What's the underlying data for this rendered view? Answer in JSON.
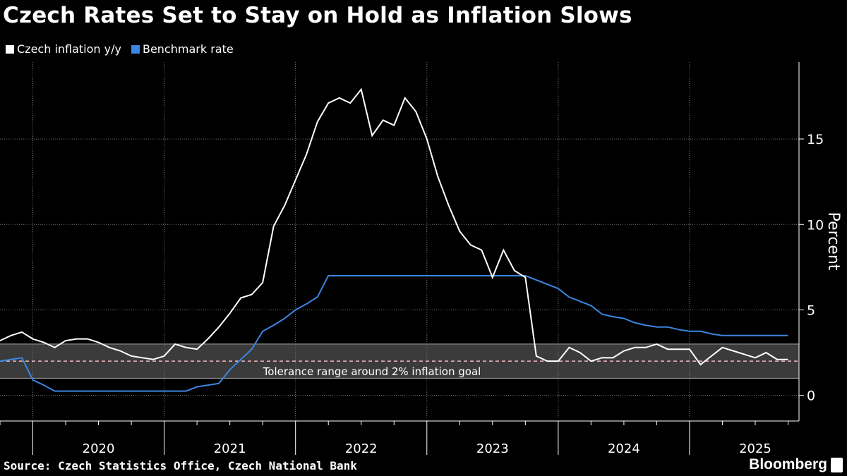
{
  "title": "Czech Rates Set to Stay on Hold as Inflation Slows",
  "source": "Source: Czech Statistics Office, Czech National Bank",
  "brand": "Bloomberg",
  "colors": {
    "inflation": "#ffffff",
    "rate": "#3a86e0",
    "band": "#3b3b3b",
    "goal": "#f3b6be",
    "grid": "#777777"
  },
  "chart_data": {
    "type": "line",
    "ylabel": "Percent",
    "ylim": [
      -1.5,
      19.5
    ],
    "yticks": [
      0,
      5,
      10,
      15
    ],
    "xlim": [
      "2019-10",
      "2025-11"
    ],
    "xtick_labels": [
      "2020",
      "2021",
      "2022",
      "2023",
      "2024",
      "2025"
    ],
    "band": {
      "low": 1,
      "high": 3,
      "label": "Tolerance range around 2% inflation goal"
    },
    "goal": 2,
    "series": [
      {
        "name": "Czech inflation y/y",
        "x": [
          "2019-10",
          "2019-11",
          "2019-12",
          "2020-01",
          "2020-02",
          "2020-03",
          "2020-04",
          "2020-05",
          "2020-06",
          "2020-07",
          "2020-08",
          "2020-09",
          "2020-10",
          "2020-11",
          "2020-12",
          "2021-01",
          "2021-02",
          "2021-03",
          "2021-04",
          "2021-05",
          "2021-06",
          "2021-07",
          "2021-08",
          "2021-09",
          "2021-10",
          "2021-11",
          "2021-12",
          "2022-01",
          "2022-02",
          "2022-03",
          "2022-04",
          "2022-05",
          "2022-06",
          "2022-07",
          "2022-08",
          "2022-09",
          "2022-10",
          "2022-11",
          "2022-12",
          "2023-01",
          "2023-02",
          "2023-03",
          "2023-04",
          "2023-05",
          "2023-06",
          "2023-07",
          "2023-08",
          "2023-09",
          "2023-10",
          "2023-11",
          "2023-12",
          "2024-01",
          "2024-02",
          "2024-03",
          "2024-04",
          "2024-05",
          "2024-06",
          "2024-07",
          "2024-08",
          "2024-09",
          "2024-10",
          "2024-11",
          "2024-12",
          "2025-01",
          "2025-02",
          "2025-03",
          "2025-04",
          "2025-05",
          "2025-06",
          "2025-07",
          "2025-08",
          "2025-09",
          "2025-10"
        ],
        "values": [
          3.2,
          3.5,
          3.7,
          3.3,
          3.1,
          2.8,
          3.2,
          3.3,
          3.3,
          3.1,
          2.8,
          2.6,
          2.3,
          2.2,
          2.1,
          2.3,
          3.0,
          2.8,
          2.7,
          3.3,
          4.0,
          4.8,
          5.7,
          5.9,
          6.6,
          9.9,
          11.1,
          12.6,
          14.1,
          16.0,
          17.1,
          17.4,
          17.1,
          17.9,
          15.2,
          16.1,
          15.8,
          17.4,
          16.6,
          15.0,
          12.8,
          11.1,
          9.6,
          8.8,
          8.5,
          6.9,
          8.5,
          7.3,
          6.9,
          2.3,
          2.0,
          2.0,
          2.8,
          2.5,
          2.0,
          2.2,
          2.2,
          2.6,
          2.8,
          2.8,
          3.0,
          2.7,
          2.7,
          2.7,
          1.8,
          2.3,
          2.8,
          2.6,
          2.4,
          2.2,
          2.5,
          2.1,
          2.1
        ]
      },
      {
        "name": "Benchmark rate",
        "x": [
          "2019-10",
          "2019-11",
          "2019-12",
          "2020-01",
          "2020-02",
          "2020-03",
          "2020-04",
          "2020-05",
          "2020-06",
          "2020-07",
          "2020-08",
          "2020-09",
          "2020-10",
          "2020-11",
          "2020-12",
          "2021-01",
          "2021-02",
          "2021-03",
          "2021-04",
          "2021-05",
          "2021-06",
          "2021-07",
          "2021-08",
          "2021-09",
          "2021-10",
          "2021-11",
          "2021-12",
          "2022-01",
          "2022-02",
          "2022-03",
          "2022-04",
          "2022-05",
          "2022-06",
          "2022-07",
          "2022-08",
          "2022-09",
          "2022-10",
          "2022-11",
          "2022-12",
          "2023-01",
          "2023-02",
          "2023-03",
          "2023-04",
          "2023-05",
          "2023-06",
          "2023-07",
          "2023-08",
          "2023-09",
          "2023-10",
          "2023-11",
          "2023-12",
          "2024-01",
          "2024-02",
          "2024-03",
          "2024-04",
          "2024-05",
          "2024-06",
          "2024-07",
          "2024-08",
          "2024-09",
          "2024-10",
          "2024-11",
          "2024-12",
          "2025-01",
          "2025-02",
          "2025-03",
          "2025-04",
          "2025-05",
          "2025-06",
          "2025-07",
          "2025-08",
          "2025-09",
          "2025-10"
        ],
        "values": [
          2.0,
          2.1,
          2.2,
          0.9,
          0.6,
          0.25,
          0.25,
          0.25,
          0.25,
          0.25,
          0.25,
          0.25,
          0.25,
          0.25,
          0.25,
          0.25,
          0.25,
          0.25,
          0.5,
          0.6,
          0.7,
          1.5,
          2.1,
          2.7,
          3.75,
          4.1,
          4.5,
          5.0,
          5.35,
          5.75,
          7.0,
          7.0,
          7.0,
          7.0,
          7.0,
          7.0,
          7.0,
          7.0,
          7.0,
          7.0,
          7.0,
          7.0,
          7.0,
          7.0,
          7.0,
          7.0,
          7.0,
          7.0,
          7.0,
          6.75,
          6.5,
          6.25,
          5.75,
          5.5,
          5.25,
          4.75,
          4.6,
          4.5,
          4.25,
          4.1,
          4.0,
          4.0,
          3.85,
          3.75,
          3.75,
          3.6,
          3.5,
          3.5,
          3.5,
          3.5,
          3.5,
          3.5,
          3.5
        ]
      }
    ]
  }
}
